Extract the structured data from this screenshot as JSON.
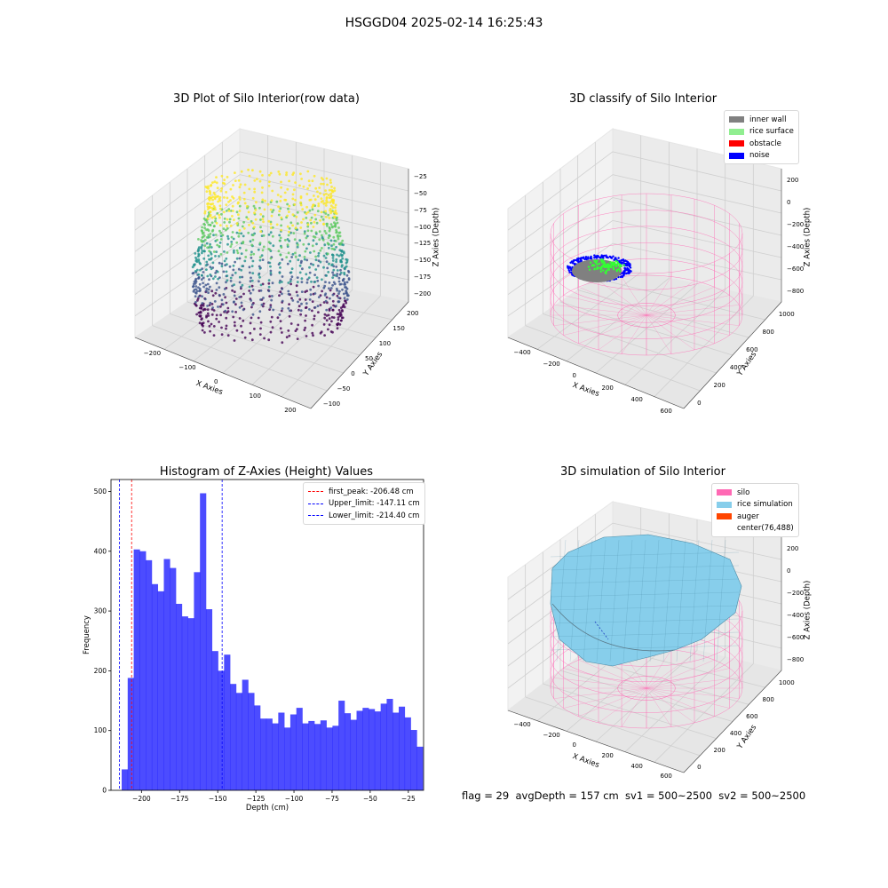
{
  "suptitle": "HSGGD04 2025-02-14 16:25:43",
  "panels": {
    "raw": {
      "title": "3D Plot of Silo Interior(row data)",
      "xlabel": "X Axies",
      "ylabel": "Y Axies",
      "zlabel": "Z Axies (Depth)",
      "xticks": [
        "−200",
        "−100",
        "0",
        "100",
        "200"
      ],
      "yticks": [
        "−100",
        "−50",
        "0",
        "50",
        "100",
        "150",
        "200"
      ],
      "zticks": [
        "−25",
        "−50",
        "−75",
        "−100",
        "−125",
        "−150",
        "−175",
        "−200"
      ]
    },
    "classify": {
      "title": "3D classify of Silo Interior",
      "xlabel": "X Axies",
      "ylabel": "Y Axies",
      "zlabel": "Z Axies (Depth)",
      "xticks": [
        "−400",
        "−200",
        "0",
        "200",
        "400",
        "600"
      ],
      "yticks": [
        "0",
        "200",
        "400",
        "600",
        "800",
        "1000"
      ],
      "zticks": [
        "200",
        "0",
        "−200",
        "−400",
        "−600",
        "−800"
      ],
      "legend": [
        {
          "label": "inner wall",
          "color": "#808080"
        },
        {
          "label": "rice surface",
          "color": "#90ee90"
        },
        {
          "label": "obstacle",
          "color": "#ff0000"
        },
        {
          "label": "noise",
          "color": "#0000ff"
        }
      ]
    },
    "simulation": {
      "title": "3D simulation of Silo Interior",
      "xlabel": "X Axies",
      "ylabel": "Y Axies",
      "zlabel": "Z Axies (Depth)",
      "xticks": [
        "−400",
        "−200",
        "0",
        "200",
        "400",
        "600"
      ],
      "yticks": [
        "0",
        "200",
        "400",
        "600",
        "800",
        "1000"
      ],
      "zticks": [
        "200",
        "0",
        "−200",
        "−400",
        "−600",
        "−800"
      ],
      "legend": [
        {
          "label": "silo",
          "color": "#ff69b4"
        },
        {
          "label": "rice simulation",
          "color": "#87ceeb"
        },
        {
          "label": "auger",
          "color": "#ff4500"
        },
        {
          "label": "center(76,488)",
          "color": ""
        }
      ]
    }
  },
  "chart_data": [
    {
      "type": "histogram",
      "title": "Histogram of Z-Axies (Height) Values",
      "xlabel": "Depth (cm)",
      "ylabel": "Frequency",
      "color": "#0000ff",
      "xlim": [
        -220,
        -15
      ],
      "ylim": [
        0,
        520
      ],
      "xticks": [
        -200,
        -175,
        -150,
        -125,
        -100,
        -75,
        -50,
        -25
      ],
      "yticks": [
        0,
        100,
        200,
        300,
        400,
        500
      ],
      "bin_start": -213,
      "bin_width": 3.95,
      "values": [
        35,
        188,
        403,
        400,
        385,
        345,
        333,
        387,
        372,
        312,
        291,
        288,
        365,
        497,
        303,
        233,
        200,
        227,
        178,
        163,
        185,
        163,
        142,
        120,
        120,
        112,
        130,
        105,
        127,
        138,
        112,
        116,
        111,
        117,
        105,
        108,
        150,
        129,
        118,
        133,
        138,
        136,
        132,
        145,
        153,
        130,
        140,
        122,
        101,
        73
      ],
      "vlines": [
        {
          "label": "first_peak: -206.48 cm",
          "x": -206.48,
          "color": "#ff0000"
        },
        {
          "label": "Upper_limit: -147.11 cm",
          "x": -147.11,
          "color": "#0000ff"
        },
        {
          "label": "Lower_limit: -214.40 cm",
          "x": -214.4,
          "color": "#0000ff"
        }
      ]
    }
  ],
  "footer": "flag = 29  avgDepth = 157 cm  sv1 = 500~2500  sv2 = 500~2500"
}
